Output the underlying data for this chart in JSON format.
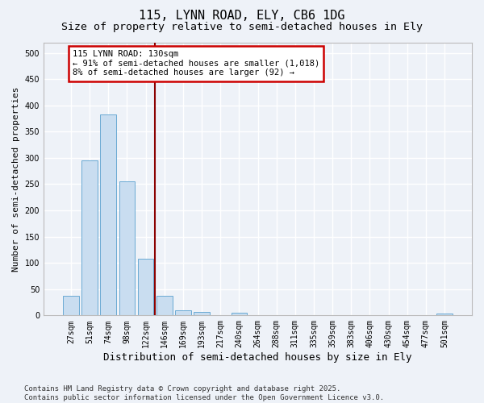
{
  "title": "115, LYNN ROAD, ELY, CB6 1DG",
  "subtitle": "Size of property relative to semi-detached houses in Ely",
  "xlabel": "Distribution of semi-detached houses by size in Ely",
  "ylabel": "Number of semi-detached properties",
  "categories": [
    "27sqm",
    "51sqm",
    "74sqm",
    "98sqm",
    "122sqm",
    "146sqm",
    "169sqm",
    "193sqm",
    "217sqm",
    "240sqm",
    "264sqm",
    "288sqm",
    "311sqm",
    "335sqm",
    "359sqm",
    "383sqm",
    "406sqm",
    "430sqm",
    "454sqm",
    "477sqm",
    "501sqm"
  ],
  "values": [
    37,
    295,
    383,
    255,
    108,
    37,
    10,
    6,
    0,
    5,
    0,
    0,
    0,
    0,
    0,
    0,
    0,
    0,
    0,
    0,
    4
  ],
  "bar_color": "#c9ddf0",
  "bar_edge_color": "#6aaad4",
  "vline_x_index": 4.5,
  "vline_color": "#8b0000",
  "annotation_title": "115 LYNN ROAD: 130sqm",
  "annotation_line1": "← 91% of semi-detached houses are smaller (1,018)",
  "annotation_line2": "8% of semi-detached houses are larger (92) →",
  "annotation_box_color": "#cc0000",
  "ylim": [
    0,
    520
  ],
  "yticks": [
    0,
    50,
    100,
    150,
    200,
    250,
    300,
    350,
    400,
    450,
    500
  ],
  "footer_line1": "Contains HM Land Registry data © Crown copyright and database right 2025.",
  "footer_line2": "Contains public sector information licensed under the Open Government Licence v3.0.",
  "background_color": "#eef2f8",
  "plot_background_color": "#eef2f8",
  "grid_color": "#ffffff",
  "title_fontsize": 11,
  "subtitle_fontsize": 9.5,
  "xlabel_fontsize": 9,
  "ylabel_fontsize": 8,
  "tick_fontsize": 7,
  "annotation_fontsize": 7.5,
  "footer_fontsize": 6.5
}
